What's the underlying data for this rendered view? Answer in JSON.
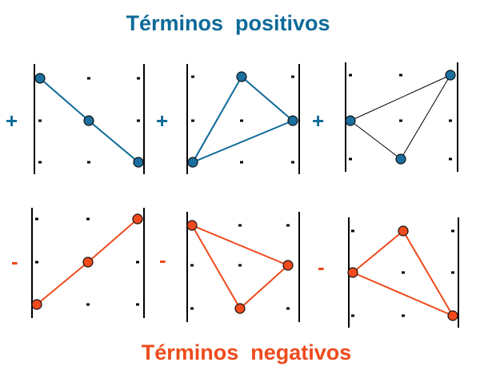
{
  "titles": {
    "positive": "Términos  positivos",
    "negative": "Términos  negativos"
  },
  "signs": {
    "positive": "+",
    "negative": "-"
  },
  "colors": {
    "positive": "#0e6a99",
    "positive_fill": "#1a6f9e",
    "negative": "#ee4b1c",
    "negative_fill": "#f04a1d",
    "line_dark": "#000000",
    "dash": "#000000"
  },
  "diagrams": [
    {
      "id": "pos-1",
      "kind": "positive",
      "nodes": [
        [
          "top",
          "left"
        ],
        [
          "mid",
          "center"
        ],
        [
          "bot",
          "right"
        ]
      ],
      "path": "open"
    },
    {
      "id": "pos-2",
      "kind": "positive",
      "nodes": [
        [
          "top",
          "center"
        ],
        [
          "mid",
          "right"
        ],
        [
          "bot",
          "left"
        ]
      ],
      "path": "closed"
    },
    {
      "id": "pos-3",
      "kind": "positive",
      "thin": true,
      "nodes": [
        [
          "top",
          "right"
        ],
        [
          "mid",
          "left"
        ],
        [
          "bot",
          "center"
        ]
      ],
      "path": "closed"
    },
    {
      "id": "neg-1",
      "kind": "negative",
      "nodes": [
        [
          "top",
          "right"
        ],
        [
          "mid",
          "center"
        ],
        [
          "bot",
          "left"
        ]
      ],
      "path": "open"
    },
    {
      "id": "neg-2",
      "kind": "negative",
      "nodes": [
        [
          "top",
          "left"
        ],
        [
          "mid",
          "right"
        ],
        [
          "bot",
          "center"
        ]
      ],
      "path": "closed"
    },
    {
      "id": "neg-3",
      "kind": "negative",
      "nodes": [
        [
          "top",
          "center"
        ],
        [
          "mid",
          "left"
        ],
        [
          "bot",
          "right"
        ]
      ],
      "path": "closed"
    }
  ]
}
